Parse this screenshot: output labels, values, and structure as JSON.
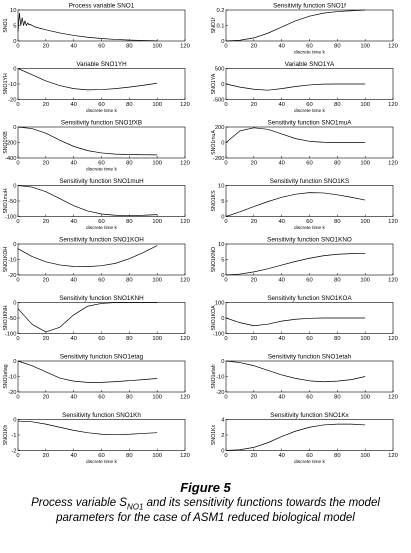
{
  "figure": {
    "label": "Figure 5",
    "caption_pre": "Process variable S",
    "caption_sub": "NO1",
    "caption_post": " and its sensitivity functions towards the model",
    "caption_line2": "parameters for the case of ASM1 reduced biological model"
  },
  "chart_data": [
    {
      "type": "line",
      "title": "Process variable SNO1",
      "xlabel": "",
      "ylabel": "SNO1",
      "xlim": [
        0,
        120
      ],
      "xticks": [
        0,
        20,
        40,
        60,
        80,
        100,
        120
      ],
      "ylim": [
        0,
        10
      ],
      "yticks": [
        0,
        5,
        10
      ],
      "x": [
        0,
        1,
        2,
        3,
        4,
        5,
        6,
        7,
        8,
        9,
        10,
        12,
        15,
        20,
        30,
        40,
        50,
        60,
        70,
        80,
        90,
        100
      ],
      "y": [
        3,
        9,
        5,
        7.5,
        5,
        6.5,
        5,
        5.8,
        5.2,
        5.4,
        5,
        4.6,
        4.2,
        3.6,
        2.6,
        1.8,
        1.2,
        0.8,
        0.5,
        0.3,
        0.15,
        0.05
      ]
    },
    {
      "type": "line",
      "title": "Sensitivity function SNO1f",
      "xlabel": "discrete time k",
      "ylabel": "SNO1f",
      "xlim": [
        0,
        120
      ],
      "xticks": [
        0,
        20,
        40,
        60,
        80,
        100,
        120
      ],
      "ylim": [
        0,
        0.2
      ],
      "yticks": [
        0,
        0.1,
        0.2
      ],
      "x": [
        0,
        10,
        20,
        30,
        40,
        50,
        60,
        70,
        80,
        90,
        100
      ],
      "y": [
        0,
        0.005,
        0.02,
        0.05,
        0.09,
        0.13,
        0.16,
        0.18,
        0.19,
        0.195,
        0.2
      ]
    },
    {
      "type": "line",
      "title": "Variable SNO1YH",
      "xlabel": "discrete time k",
      "ylabel": "SNO1YH",
      "xlim": [
        0,
        120
      ],
      "xticks": [
        0,
        20,
        40,
        60,
        80,
        100,
        120
      ],
      "ylim": [
        -20,
        0
      ],
      "yticks": [
        -20,
        -10,
        0
      ],
      "x": [
        0,
        10,
        20,
        30,
        40,
        50,
        60,
        70,
        80,
        90,
        100
      ],
      "y": [
        0,
        -4,
        -8,
        -11,
        -13,
        -13.8,
        -13.6,
        -13,
        -12,
        -10.8,
        -9.5
      ]
    },
    {
      "type": "line",
      "title": "Variable SNO1YA",
      "xlabel": "discrete time k",
      "ylabel": "SNO1YA",
      "xlim": [
        0,
        120
      ],
      "xticks": [
        0,
        20,
        40,
        60,
        80,
        100,
        120
      ],
      "ylim": [
        -500,
        500
      ],
      "yticks": [
        -500,
        0,
        500
      ],
      "x": [
        0,
        10,
        20,
        30,
        40,
        50,
        60,
        70,
        80,
        90,
        100
      ],
      "y": [
        0,
        -100,
        -170,
        -200,
        -150,
        -80,
        -30,
        -5,
        0,
        0,
        0
      ]
    },
    {
      "type": "line",
      "title": "Sensitivity function SNO1fXB",
      "xlabel": "discrete time k",
      "ylabel": "SNO1fXB",
      "xlim": [
        0,
        120
      ],
      "xticks": [
        0,
        20,
        40,
        60,
        80,
        100,
        120
      ],
      "ylim": [
        -400,
        0
      ],
      "yticks": [
        -400,
        -200,
        0
      ],
      "x": [
        0,
        10,
        20,
        30,
        40,
        50,
        60,
        70,
        80,
        90,
        100
      ],
      "y": [
        0,
        -20,
        -80,
        -170,
        -250,
        -305,
        -335,
        -350,
        -355,
        -358,
        -360
      ]
    },
    {
      "type": "line",
      "title": "Sensitivity function SNO1muA",
      "xlabel": "",
      "ylabel": "SNO1muA",
      "xlim": [
        0,
        120
      ],
      "xticks": [
        0,
        20,
        40,
        60,
        80,
        100,
        120
      ],
      "ylim": [
        -200,
        200
      ],
      "yticks": [
        -200,
        0,
        200
      ],
      "x": [
        0,
        10,
        20,
        30,
        40,
        50,
        60,
        70,
        80,
        90,
        100
      ],
      "y": [
        0,
        150,
        190,
        170,
        110,
        50,
        15,
        3,
        0,
        0,
        0
      ]
    },
    {
      "type": "line",
      "title": "Sensitivity function SNO1muH",
      "xlabel": "discrete time k",
      "ylabel": "SNO1muH",
      "xlim": [
        0,
        120
      ],
      "xticks": [
        0,
        20,
        40,
        60,
        80,
        100,
        120
      ],
      "ylim": [
        -100,
        0
      ],
      "yticks": [
        -100,
        -50,
        0
      ],
      "x": [
        0,
        10,
        20,
        30,
        40,
        50,
        60,
        70,
        80,
        90,
        100
      ],
      "y": [
        0,
        -5,
        -20,
        -42,
        -65,
        -82,
        -92,
        -96,
        -97,
        -96,
        -94
      ]
    },
    {
      "type": "line",
      "title": "Sensitivity function SNO1KS",
      "xlabel": "discrete time k",
      "ylabel": "SNO1KS",
      "xlim": [
        0,
        120
      ],
      "xticks": [
        0,
        20,
        40,
        60,
        80,
        100,
        120
      ],
      "ylim": [
        0,
        10
      ],
      "yticks": [
        0,
        5,
        10
      ],
      "x": [
        0,
        10,
        20,
        30,
        40,
        50,
        60,
        70,
        80,
        90,
        100
      ],
      "y": [
        0,
        1.5,
        3.2,
        4.8,
        6.2,
        7.2,
        7.7,
        7.6,
        7,
        6.2,
        5.3
      ]
    },
    {
      "type": "line",
      "title": "Sensitivity function SNO1KOH",
      "xlabel": "",
      "ylabel": "SNO1KOH",
      "xlim": [
        0,
        120
      ],
      "xticks": [
        0,
        20,
        40,
        60,
        80,
        100,
        120
      ],
      "ylim": [
        -20,
        0
      ],
      "yticks": [
        -20,
        -10,
        0
      ],
      "x": [
        0,
        10,
        20,
        30,
        40,
        50,
        60,
        70,
        80,
        90,
        100
      ],
      "y": [
        -3,
        -8,
        -11.5,
        -13.5,
        -14.5,
        -14.6,
        -14,
        -12.5,
        -9.5,
        -5.5,
        -1
      ]
    },
    {
      "type": "line",
      "title": "Sensitivity function SNO1KNO",
      "xlabel": "",
      "ylabel": "SNO1KNO",
      "xlim": [
        0,
        120
      ],
      "xticks": [
        0,
        20,
        40,
        60,
        80,
        100,
        120
      ],
      "ylim": [
        0,
        10
      ],
      "yticks": [
        0,
        5,
        10
      ],
      "x": [
        0,
        10,
        20,
        30,
        40,
        50,
        60,
        70,
        80,
        90,
        100
      ],
      "y": [
        0,
        0.3,
        1,
        2,
        3.2,
        4.4,
        5.4,
        6.2,
        6.7,
        6.9,
        7
      ]
    },
    {
      "type": "line",
      "title": "Sensitivity function SNO1KNH",
      "xlabel": "",
      "ylabel": "SNO1KNH",
      "xlim": [
        0,
        120
      ],
      "xticks": [
        0,
        20,
        40,
        60,
        80,
        100,
        120
      ],
      "ylim": [
        -100,
        0
      ],
      "yticks": [
        -100,
        -50,
        0
      ],
      "x": [
        0,
        10,
        20,
        30,
        40,
        50,
        60,
        70,
        80,
        90,
        100
      ],
      "y": [
        -20,
        -70,
        -95,
        -80,
        -40,
        -12,
        -3,
        0,
        0,
        0,
        0
      ]
    },
    {
      "type": "line",
      "title": "Sensitivity function SNO1KOA",
      "xlabel": "",
      "ylabel": "SNO1KOA",
      "xlim": [
        0,
        120
      ],
      "xticks": [
        0,
        20,
        40,
        60,
        80,
        100,
        120
      ],
      "ylim": [
        -100,
        100
      ],
      "yticks": [
        -100,
        0,
        100
      ],
      "x": [
        0,
        10,
        20,
        30,
        40,
        50,
        60,
        70,
        80,
        90,
        100
      ],
      "y": [
        0,
        -30,
        -50,
        -40,
        -20,
        -8,
        -2,
        0,
        0,
        0,
        0
      ]
    },
    {
      "type": "line",
      "title": "Sensitivity function SNO1etag",
      "xlabel": "",
      "ylabel": "SNO1etag",
      "xlim": [
        0,
        120
      ],
      "xticks": [
        0,
        20,
        40,
        60,
        80,
        100,
        120
      ],
      "ylim": [
        -20,
        0
      ],
      "yticks": [
        -20,
        -10,
        0
      ],
      "x": [
        0,
        10,
        20,
        30,
        40,
        50,
        60,
        70,
        80,
        90,
        100
      ],
      "y": [
        0,
        -3,
        -7,
        -11,
        -13,
        -13.8,
        -13.8,
        -13.3,
        -12.7,
        -12,
        -11.3
      ]
    },
    {
      "type": "line",
      "title": "Sensitivity function SNO1etah",
      "xlabel": "",
      "ylabel": "SNO1etah",
      "xlim": [
        0,
        120
      ],
      "xticks": [
        0,
        20,
        40,
        60,
        80,
        100,
        120
      ],
      "ylim": [
        -20,
        0
      ],
      "yticks": [
        -20,
        -10,
        0
      ],
      "x": [
        0,
        10,
        20,
        30,
        40,
        50,
        60,
        70,
        80,
        90,
        100
      ],
      "y": [
        0,
        -1,
        -3,
        -6,
        -9,
        -11.2,
        -12.8,
        -13.4,
        -13,
        -12,
        -10
      ]
    },
    {
      "type": "line",
      "title": "Sensitivity function SNO1Kh",
      "xlabel": "discrete time k",
      "ylabel": "SNO1Kh",
      "xlim": [
        0,
        120
      ],
      "xticks": [
        0,
        20,
        40,
        60,
        80,
        100,
        120
      ],
      "ylim": [
        -2,
        0
      ],
      "yticks": [
        -2,
        -1,
        0
      ],
      "x": [
        0,
        10,
        20,
        30,
        40,
        50,
        60,
        70,
        80,
        90,
        100
      ],
      "y": [
        -0.1,
        -0.15,
        -0.3,
        -0.5,
        -0.7,
        -0.85,
        -0.95,
        -0.98,
        -0.95,
        -0.9,
        -0.85
      ]
    },
    {
      "type": "line",
      "title": "Sensitivity function SNO1Kx",
      "xlabel": "discrete time k",
      "ylabel": "SNO1Kx",
      "xlim": [
        0,
        120
      ],
      "xticks": [
        0,
        20,
        40,
        60,
        80,
        100,
        120
      ],
      "ylim": [
        0,
        4
      ],
      "yticks": [
        0,
        2,
        4
      ],
      "x": [
        0,
        10,
        20,
        30,
        40,
        50,
        60,
        70,
        80,
        90,
        100
      ],
      "y": [
        0,
        0.1,
        0.4,
        1,
        1.8,
        2.5,
        3,
        3.3,
        3.4,
        3.4,
        3.3
      ]
    }
  ]
}
